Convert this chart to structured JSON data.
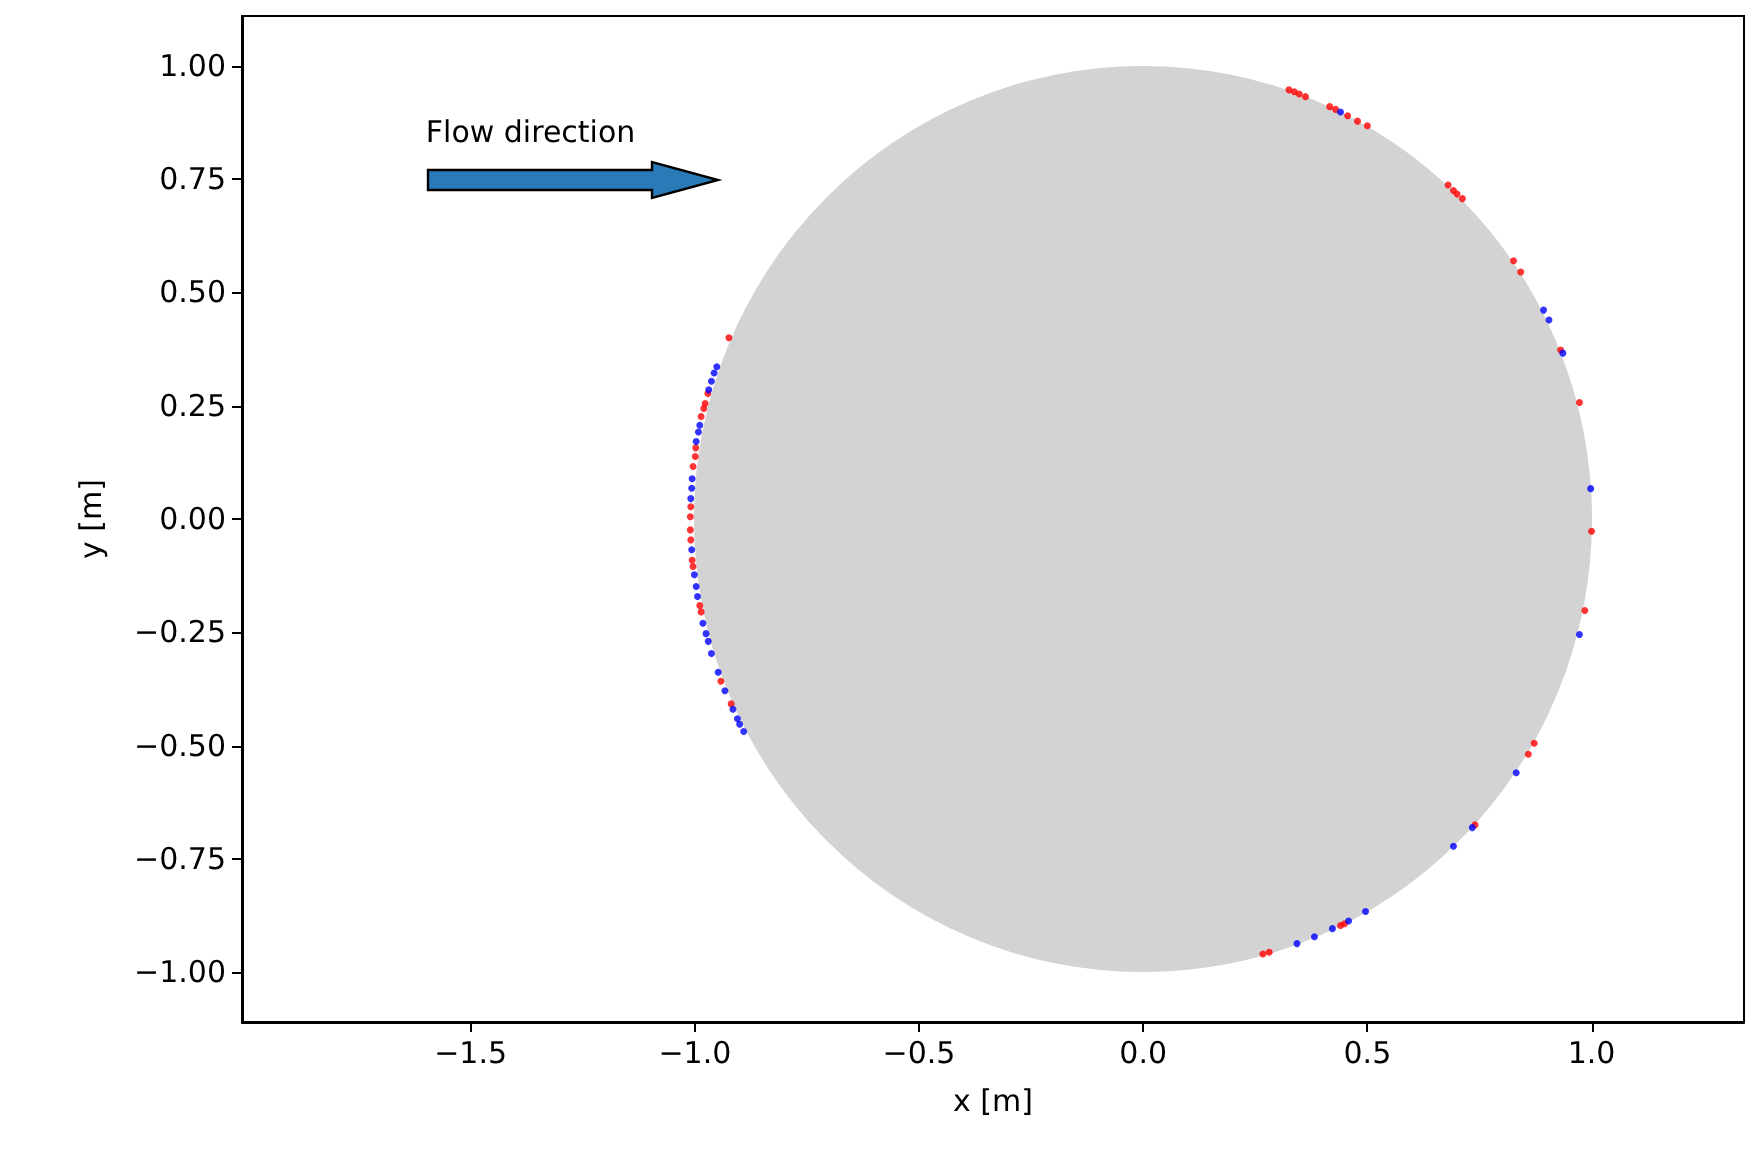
{
  "chart_data": {
    "type": "scatter",
    "xlabel": "x [m]",
    "ylabel": "y [m]",
    "annotations": [
      "Flow direction"
    ],
    "xlim": [
      -2.01,
      1.34
    ],
    "ylim": [
      -1.11,
      1.11
    ],
    "xticks": [
      {
        "value": -1.5,
        "label": "−1.5"
      },
      {
        "value": -1,
        "label": "−1.0"
      },
      {
        "value": -0.5,
        "label": "−0.5"
      },
      {
        "value": 0,
        "label": "0.0"
      },
      {
        "value": 0.5,
        "label": "0.5"
      },
      {
        "value": 1,
        "label": "1.0"
      }
    ],
    "yticks": [
      {
        "value": -1,
        "label": "−1.00"
      },
      {
        "value": -0.75,
        "label": "−0.75"
      },
      {
        "value": -0.5,
        "label": "−0.50"
      },
      {
        "value": -0.25,
        "label": "−0.25"
      },
      {
        "value": 0,
        "label": "0.00"
      },
      {
        "value": 0.25,
        "label": "0.25"
      },
      {
        "value": 0.5,
        "label": "0.50"
      },
      {
        "value": 0.75,
        "label": "0.75"
      },
      {
        "value": 1,
        "label": "1.00"
      }
    ],
    "grid": false,
    "marker": "circle",
    "series": [
      {
        "color": "#ff0000",
        "x": [
          0.325,
          0.337,
          0.348,
          0.362,
          0.416,
          0.429,
          0.456,
          0.478,
          0.5,
          0.676,
          0.68,
          0.692,
          0.7,
          0.712,
          0.826,
          0.842,
          0.931,
          0.973,
          1.0,
          0.985,
          0.872,
          0.859,
          0.74,
          0.449,
          0.44,
          0.281,
          0.267,
          -0.924,
          -0.971,
          -0.977,
          -0.98,
          -0.986,
          -0.998,
          -0.999,
          -1.004,
          -1.009,
          -1.01,
          -1.01,
          -1.009,
          -1.006,
          -1.004,
          -0.989,
          -0.986,
          -0.942,
          -0.919
        ],
        "values": [
          0.947,
          0.943,
          0.938,
          0.932,
          0.91,
          0.904,
          0.89,
          0.878,
          0.868,
          null,
          0.737,
          0.725,
          0.717,
          0.707,
          0.57,
          0.545,
          0.373,
          0.257,
          -0.027,
          -0.202,
          -0.495,
          -0.519,
          -0.675,
          -0.893,
          -0.897,
          -0.956,
          -0.96,
          0.4,
          0.277,
          0.255,
          0.244,
          0.226,
          0.157,
          0.138,
          0.116,
          0.027,
          0.005,
          -0.024,
          -0.046,
          -0.091,
          -0.105,
          -0.191,
          -0.205,
          -0.358,
          -0.408
        ]
      },
      {
        "color": "#0000ff",
        "x": [
          0.44,
          0.893,
          0.905,
          0.936,
          0.998,
          0.973,
          0.832,
          0.734,
          0.692,
          0.496,
          0.458,
          0.422,
          0.382,
          0.343,
          -0.951,
          -0.957,
          -0.963,
          -0.969,
          -0.989,
          -0.992,
          -0.997,
          -1.006,
          -1.007,
          -1.009,
          -1.007,
          -1.001,
          -0.997,
          -0.994,
          -0.982,
          -0.975,
          -0.97,
          -0.963,
          -0.948,
          -0.933,
          -0.915,
          -0.905,
          -0.9,
          -0.891
        ],
        "values": [
          0.898,
          0.461,
          0.439,
          0.366,
          0.067,
          -0.255,
          -0.56,
          -0.681,
          -0.722,
          -0.866,
          -0.887,
          -0.904,
          -0.922,
          -0.937,
          0.336,
          0.322,
          0.304,
          0.285,
          0.207,
          0.192,
          0.171,
          0.089,
          0.068,
          0.045,
          -0.068,
          -0.123,
          -0.149,
          -0.171,
          -0.23,
          -0.253,
          -0.27,
          -0.297,
          -0.338,
          -0.379,
          -0.42,
          -0.441,
          -0.453,
          -0.469
        ]
      }
    ]
  }
}
